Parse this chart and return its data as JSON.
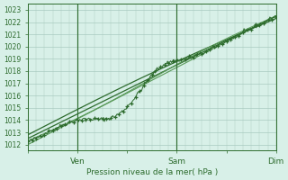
{
  "bg_color": "#d8f0e8",
  "grid_color": "#aaccc0",
  "line_color_main": "#2d6b2d",
  "line_color_light": "#5a9a5a",
  "xlabel": "Pression niveau de la mer( hPa )",
  "ylim": [
    1011.5,
    1023.5
  ],
  "yticks": [
    1012,
    1013,
    1014,
    1015,
    1016,
    1017,
    1018,
    1019,
    1020,
    1021,
    1022,
    1023
  ],
  "xtick_labels": [
    "",
    "Ven",
    "",
    "Sam",
    "",
    "Dim"
  ],
  "xtick_positions": [
    0,
    48,
    96,
    144,
    192,
    240
  ],
  "x_total": 240,
  "n_points": 241,
  "vlines": [
    48,
    144,
    240
  ]
}
